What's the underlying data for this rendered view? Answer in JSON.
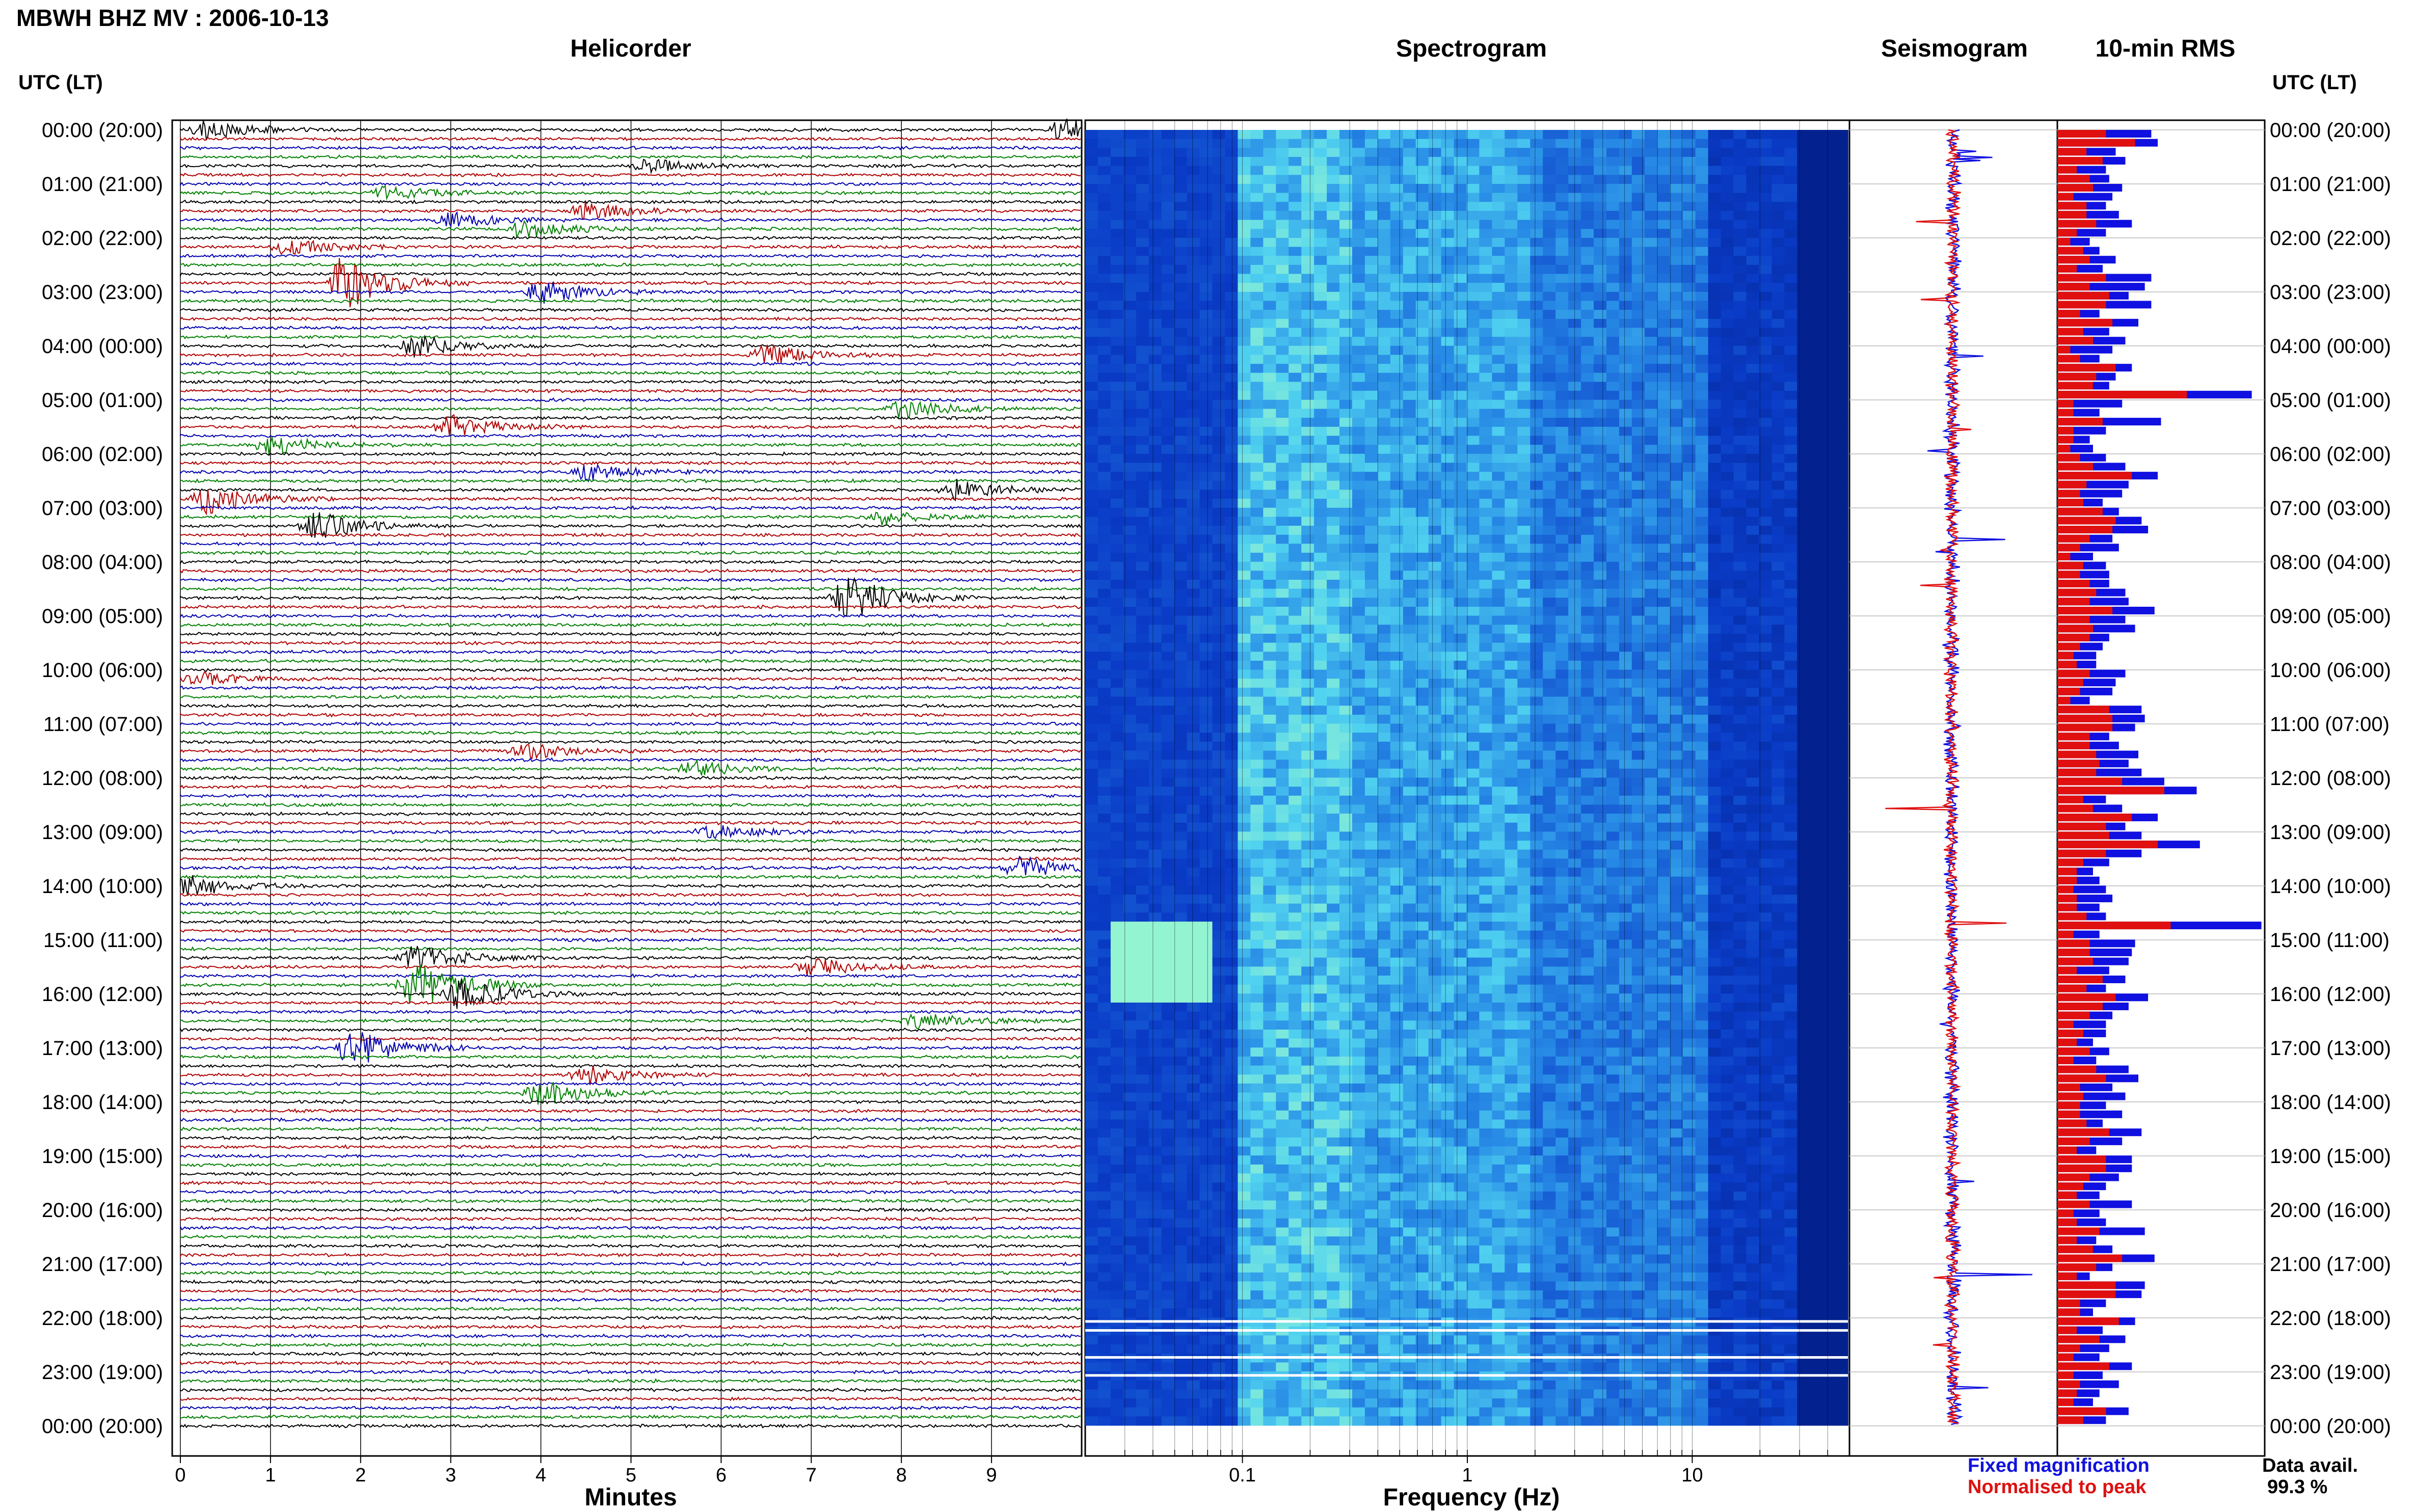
{
  "header": {
    "title": "MBWH BHZ MV : 2006-10-13",
    "utc_label_left": "UTC (LT)",
    "utc_label_right": "UTC (LT)"
  },
  "panels": {
    "helicorder_title": "Helicorder",
    "spectrogram_title": "Spectrogram",
    "seismogram_title": "Seismogram",
    "rms_title": "10-min RMS"
  },
  "axes": {
    "minutes_label": "Minutes",
    "frequency_label": "Frequency (Hz)"
  },
  "legend": {
    "fixed": "Fixed magnification",
    "normalised": "Normalised to peak"
  },
  "availability": {
    "label": "Data avail.",
    "value": "99.3 %"
  },
  "colors": {
    "trace_colors": [
      "#000000",
      "#b00000",
      "#0000b0",
      "#008000"
    ],
    "fixed_bar": "#1010e0",
    "normalised_bar": "#e01010",
    "spectrogram_low": "#00208c",
    "spectrogram_high": "#60f0ff"
  },
  "chart_data": [
    {
      "type": "line",
      "name": "helicorder",
      "title": "Helicorder",
      "xlabel": "Minutes",
      "x_ticks": [
        "0",
        "1",
        "2",
        "3",
        "4",
        "5",
        "6",
        "7",
        "8",
        "9"
      ],
      "xlim": [
        0,
        10
      ],
      "time_labels": [
        "00:00 (20:00)",
        "01:00 (21:00)",
        "02:00 (22:00)",
        "03:00 (23:00)",
        "04:00 (00:00)",
        "05:00 (01:00)",
        "06:00 (02:00)",
        "07:00 (03:00)",
        "08:00 (04:00)",
        "09:00 (05:00)",
        "10:00 (06:00)",
        "11:00 (07:00)",
        "12:00 (08:00)",
        "13:00 (09:00)",
        "14:00 (10:00)",
        "15:00 (11:00)",
        "16:00 (12:00)",
        "17:00 (13:00)",
        "18:00 (14:00)",
        "19:00 (15:00)",
        "20:00 (16:00)",
        "21:00 (17:00)",
        "22:00 (18:00)",
        "23:00 (19:00)",
        "00:00 (20:00)"
      ],
      "rows_per_hour": 6,
      "events": [
        {
          "line": 0,
          "minute": 0.3,
          "amp": 0.5
        },
        {
          "line": 0,
          "minute": 9.8,
          "amp": 0.6
        },
        {
          "line": 4,
          "minute": 5.2,
          "amp": 0.35
        },
        {
          "line": 7,
          "minute": 2.3,
          "amp": 0.4
        },
        {
          "line": 9,
          "minute": 4.5,
          "amp": 0.45
        },
        {
          "line": 10,
          "minute": 3.0,
          "amp": 0.4
        },
        {
          "line": 11,
          "minute": 3.8,
          "amp": 0.5
        },
        {
          "line": 13,
          "minute": 1.2,
          "amp": 0.45
        },
        {
          "line": 17,
          "minute": 1.8,
          "amp": 1.4
        },
        {
          "line": 18,
          "minute": 4.0,
          "amp": 0.6
        },
        {
          "line": 24,
          "minute": 2.6,
          "amp": 0.55
        },
        {
          "line": 25,
          "minute": 6.5,
          "amp": 0.5
        },
        {
          "line": 31,
          "minute": 8.0,
          "amp": 0.55
        },
        {
          "line": 33,
          "minute": 3.0,
          "amp": 0.6
        },
        {
          "line": 35,
          "minute": 1.0,
          "amp": 0.5
        },
        {
          "line": 38,
          "minute": 4.5,
          "amp": 0.45
        },
        {
          "line": 40,
          "minute": 8.6,
          "amp": 0.5
        },
        {
          "line": 41,
          "minute": 0.3,
          "amp": 0.75
        },
        {
          "line": 43,
          "minute": 7.8,
          "amp": 0.35
        },
        {
          "line": 44,
          "minute": 1.5,
          "amp": 0.7
        },
        {
          "line": 52,
          "minute": 7.4,
          "amp": 1.1
        },
        {
          "line": 61,
          "minute": 0.2,
          "amp": 0.35
        },
        {
          "line": 69,
          "minute": 3.8,
          "amp": 0.45
        },
        {
          "line": 71,
          "minute": 5.7,
          "amp": 0.4
        },
        {
          "line": 78,
          "minute": 5.9,
          "amp": 0.35
        },
        {
          "line": 82,
          "minute": 9.3,
          "amp": 0.55
        },
        {
          "line": 84,
          "minute": 0.1,
          "amp": 0.55
        },
        {
          "line": 92,
          "minute": 2.6,
          "amp": 0.7
        },
        {
          "line": 93,
          "minute": 7.0,
          "amp": 0.5
        },
        {
          "line": 95,
          "minute": 2.6,
          "amp": 1.3
        },
        {
          "line": 96,
          "minute": 3.1,
          "amp": 0.8
        },
        {
          "line": 99,
          "minute": 8.2,
          "amp": 0.45
        },
        {
          "line": 102,
          "minute": 1.9,
          "amp": 1.0
        },
        {
          "line": 105,
          "minute": 4.5,
          "amp": 0.5
        },
        {
          "line": 107,
          "minute": 4.0,
          "amp": 0.65
        }
      ]
    },
    {
      "type": "heatmap",
      "name": "spectrogram",
      "title": "Spectrogram",
      "xlabel": "Frequency (Hz)",
      "xscale": "log",
      "xlim": [
        0.02,
        50
      ],
      "x_ticks": [
        {
          "value": 0.1,
          "label": "0.1"
        },
        {
          "value": 1,
          "label": "1"
        },
        {
          "value": 10,
          "label": "10"
        }
      ],
      "grid": true
    },
    {
      "type": "line",
      "name": "seismogram",
      "title": "Seismogram",
      "series": [
        {
          "name": "Fixed magnification"
        },
        {
          "name": "Normalised to peak"
        }
      ]
    },
    {
      "type": "bar",
      "name": "rms",
      "title": "10-min RMS",
      "orientation": "horizontal",
      "categories_count": 144,
      "series": [
        {
          "name": "Fixed magnification",
          "values": [
            2.9,
            3.1,
            1.8,
            2.1,
            1.5,
            1.6,
            2.0,
            1.7,
            1.5,
            1.9,
            2.3,
            1.5,
            1.0,
            1.3,
            1.8,
            1.4,
            2.9,
            2.7,
            2.2,
            2.9,
            1.3,
            2.5,
            1.6,
            2.1,
            1.7,
            1.3,
            2.3,
            1.8,
            1.6,
            6.0,
            2.0,
            1.3,
            3.2,
            1.5,
            1.0,
            1.1,
            1.5,
            2.1,
            3.1,
            2.2,
            2.0,
            1.4,
            1.9,
            2.6,
            2.8,
            1.7,
            1.9,
            1.1,
            1.5,
            1.6,
            1.6,
            2.1,
            2.2,
            3.0,
            2.1,
            2.4,
            1.6,
            1.4,
            1.2,
            1.2,
            2.1,
            1.8,
            1.7,
            1.0,
            2.6,
            2.7,
            2.4,
            1.6,
            1.9,
            2.5,
            2.2,
            2.6,
            3.3,
            4.3,
            1.5,
            2.0,
            3.1,
            2.1,
            2.6,
            4.4,
            2.6,
            1.6,
            1.1,
            1.3,
            1.5,
            1.7,
            1.3,
            1.5,
            6.3,
            1.3,
            2.4,
            2.3,
            2.2,
            1.6,
            2.1,
            1.5,
            2.8,
            2.2,
            1.7,
            1.5,
            1.5,
            1.1,
            1.6,
            1.2,
            2.2,
            2.5,
            1.7,
            2.1,
            1.5,
            2.0,
            1.4,
            2.6,
            2.0,
            1.2,
            2.3,
            2.3,
            1.9,
            1.5,
            1.3,
            2.3,
            1.3,
            1.5,
            2.7,
            1.2,
            1.7,
            3.0,
            1.7,
            1.0,
            2.7,
            2.6,
            1.5,
            1.1,
            2.4,
            1.4,
            2.1,
            1.6,
            1.3,
            2.3,
            1.4,
            1.9,
            1.3,
            1.1,
            2.2,
            1.5
          ]
        },
        {
          "name": "Normalised to peak",
          "values": [
            1.5,
            2.4,
            0.9,
            1.4,
            0.6,
            1.0,
            1.1,
            0.5,
            0.9,
            0.9,
            1.2,
            0.6,
            0.4,
            0.8,
            1.0,
            0.6,
            1.5,
            1.0,
            1.6,
            1.5,
            0.7,
            1.7,
            0.8,
            1.1,
            0.4,
            0.7,
            1.8,
            1.2,
            1.1,
            4.0,
            0.5,
            0.5,
            1.4,
            0.5,
            0.5,
            0.4,
            0.7,
            1.1,
            2.3,
            0.9,
            0.7,
            0.8,
            1.4,
            1.8,
            1.7,
            1.0,
            0.7,
            0.4,
            0.8,
            0.7,
            1.0,
            1.2,
            1.0,
            1.7,
            1.0,
            1.1,
            1.0,
            0.7,
            0.5,
            0.6,
            1.0,
            0.8,
            0.7,
            0.4,
            1.6,
            1.7,
            1.7,
            1.0,
            1.0,
            1.2,
            1.3,
            1.2,
            2.0,
            3.3,
            0.8,
            1.1,
            2.3,
            1.5,
            1.6,
            3.1,
            1.5,
            0.8,
            0.6,
            0.6,
            0.5,
            0.6,
            0.6,
            0.9,
            3.5,
            0.5,
            1.0,
            1.0,
            1.1,
            0.6,
            1.4,
            0.9,
            1.8,
            1.4,
            1.0,
            0.5,
            0.8,
            0.6,
            1.0,
            0.5,
            1.2,
            1.5,
            0.7,
            0.8,
            0.7,
            0.7,
            0.9,
            1.6,
            1.0,
            0.6,
            1.5,
            1.5,
            1.0,
            0.8,
            0.6,
            1.0,
            0.5,
            0.6,
            1.3,
            0.6,
            1.1,
            2.0,
            1.2,
            0.6,
            1.8,
            1.8,
            0.7,
            0.7,
            1.9,
            0.6,
            1.3,
            0.7,
            0.5,
            1.6,
            0.5,
            0.7,
            0.6,
            0.5,
            1.5,
            0.8
          ]
        }
      ]
    }
  ]
}
